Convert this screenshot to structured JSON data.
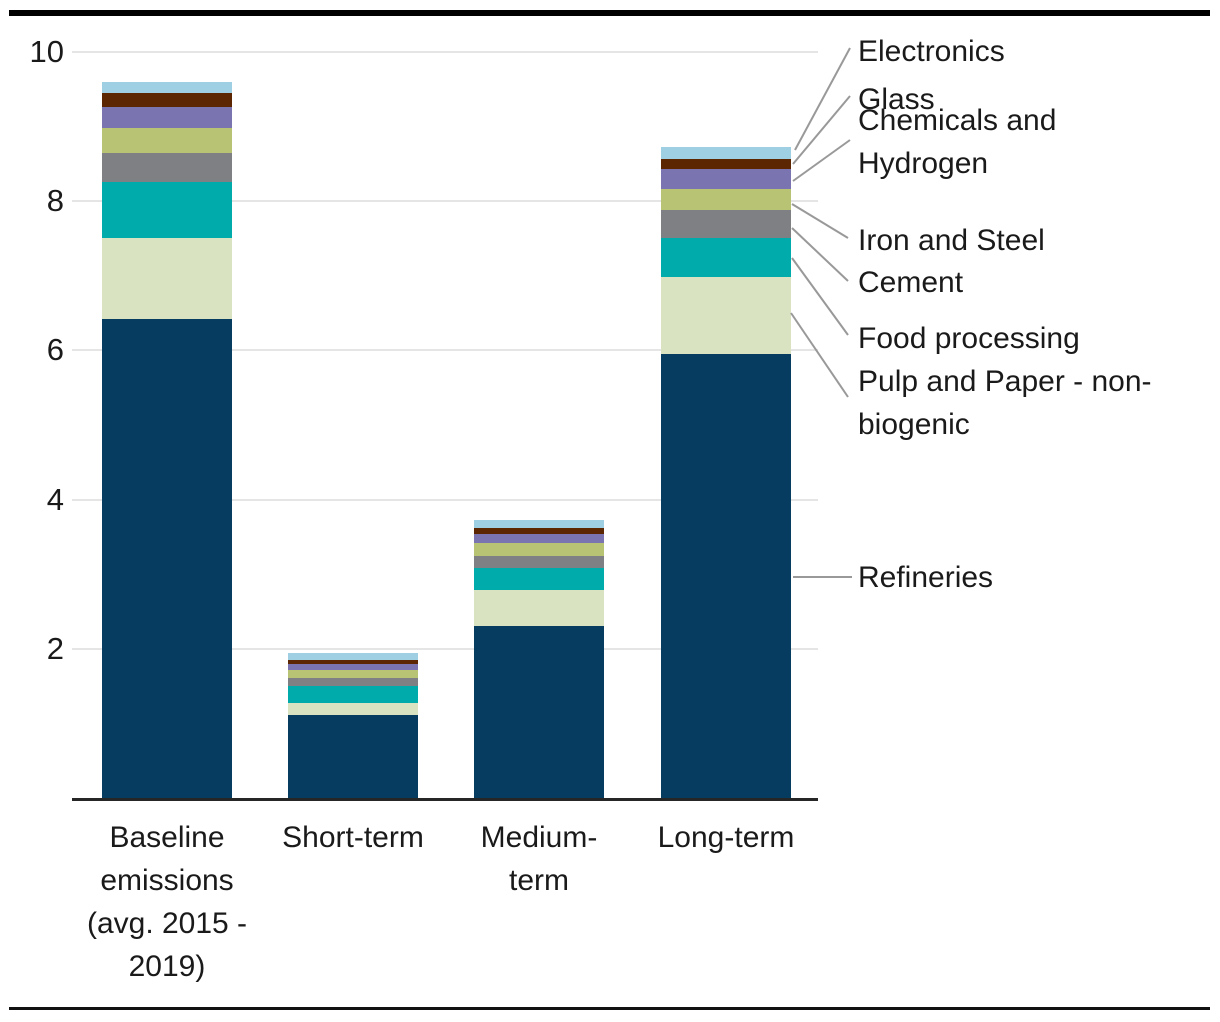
{
  "chart_data": {
    "type": "bar",
    "stacked": true,
    "categories": [
      "Baseline\nemissions\n(avg. 2015 -\n2019)",
      "Short-term",
      "Medium-\nterm",
      "Long-term"
    ],
    "series": [
      {
        "name": "Refineries",
        "color": "#053c5f",
        "values": [
          6.42,
          1.11,
          2.31,
          5.95
        ]
      },
      {
        "name": "Pulp and Paper - non-biogenic",
        "color": "#d9e2c1",
        "values": [
          1.09,
          0.17,
          0.48,
          1.04
        ]
      },
      {
        "name": "Food processing",
        "color": "#00abab",
        "values": [
          0.75,
          0.22,
          0.29,
          0.52
        ]
      },
      {
        "name": "Cement",
        "color": "#7f8083",
        "values": [
          0.39,
          0.11,
          0.17,
          0.37
        ]
      },
      {
        "name": "Iron and Steel",
        "color": "#b8c374",
        "values": [
          0.33,
          0.1,
          0.17,
          0.29
        ]
      },
      {
        "name": "Chemicals and Hydrogen",
        "color": "#7a74b0",
        "values": [
          0.28,
          0.08,
          0.12,
          0.26
        ]
      },
      {
        "name": "Glass",
        "color": "#5c2603",
        "values": [
          0.19,
          0.06,
          0.08,
          0.14
        ]
      },
      {
        "name": "Electronics",
        "color": "#9fcfe3",
        "values": [
          0.15,
          0.09,
          0.1,
          0.16
        ]
      }
    ],
    "totals": [
      9.6,
      1.94,
      3.72,
      8.73
    ],
    "xlabel": "",
    "ylabel": "",
    "ylim": [
      0,
      10
    ],
    "yticks": [
      2,
      4,
      6,
      8,
      10
    ],
    "grid": "horizontal",
    "legend_position": "right-callouts"
  },
  "legend": {
    "items": [
      {
        "label": "Electronics"
      },
      {
        "label": "Glass"
      },
      {
        "label": "Chemicals and\nHydrogen"
      },
      {
        "label": "Iron and Steel"
      },
      {
        "label": "Cement"
      },
      {
        "label": "Food processing"
      },
      {
        "label": "Pulp and Paper - non-\nbiogenic"
      },
      {
        "label": "Refineries"
      }
    ]
  },
  "colors": {
    "grid": "#e5e5e5",
    "axis": "#262626",
    "leader_line": "#999999",
    "text": "#1a1a1a",
    "top_rule": "#000000",
    "bottom_rule": "#111111"
  }
}
